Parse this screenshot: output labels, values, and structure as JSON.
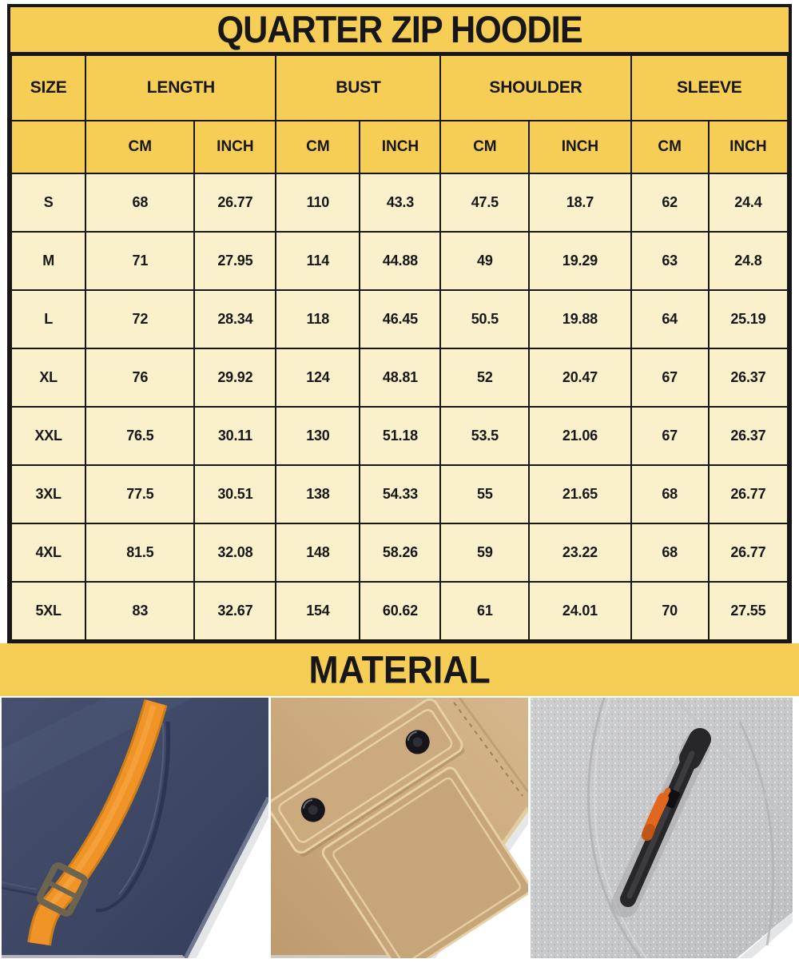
{
  "title": "QUARTER ZIP HOODIE",
  "size_chart": {
    "corner_header": "SIZE",
    "measure_groups": [
      "LENGTH",
      "BUST",
      "SHOULDER",
      "SLEEVE"
    ],
    "unit_cm": "CM",
    "unit_inch": "INCH",
    "rows": [
      {
        "size": "S",
        "values": [
          "68",
          "26.77",
          "110",
          "43.3",
          "47.5",
          "18.7",
          "62",
          "24.4"
        ]
      },
      {
        "size": "M",
        "values": [
          "71",
          "27.95",
          "114",
          "44.88",
          "49",
          "19.29",
          "63",
          "24.8"
        ]
      },
      {
        "size": "L",
        "values": [
          "72",
          "28.34",
          "118",
          "46.45",
          "50.5",
          "19.88",
          "64",
          "25.19"
        ]
      },
      {
        "size": "XL",
        "values": [
          "76",
          "29.92",
          "124",
          "48.81",
          "52",
          "20.47",
          "67",
          "26.37"
        ]
      },
      {
        "size": "XXL",
        "values": [
          "76.5",
          "30.11",
          "130",
          "51.18",
          "53.5",
          "21.06",
          "67",
          "26.37"
        ]
      },
      {
        "size": "3XL",
        "values": [
          "77.5",
          "30.51",
          "138",
          "54.33",
          "55",
          "21.65",
          "68",
          "26.77"
        ]
      },
      {
        "size": "4XL",
        "values": [
          "81.5",
          "32.08",
          "148",
          "58.26",
          "59",
          "23.22",
          "68",
          "26.77"
        ]
      },
      {
        "size": "5XL",
        "values": [
          "83",
          "32.67",
          "154",
          "60.62",
          "61",
          "24.01",
          "70",
          "27.55"
        ]
      }
    ]
  },
  "material": {
    "heading": "MATERIAL",
    "swatches": [
      {
        "name": "navy-fabric-orange-drawstring"
      },
      {
        "name": "khaki-fabric-snap-flap-pocket"
      },
      {
        "name": "gray-heather-fabric-zip-pocket"
      }
    ]
  },
  "colors": {
    "banner_yellow": "#F7CE55",
    "cell_cream": "#FAF0CB",
    "border_black": "#171717",
    "navy_fabric": "#3D4764",
    "orange_accent": "#F09428",
    "khaki_fabric": "#C9A87C",
    "gray_fabric": "#C6C7C9",
    "zipper_black": "#27272A",
    "zip_pull_orange": "#E2671E"
  }
}
